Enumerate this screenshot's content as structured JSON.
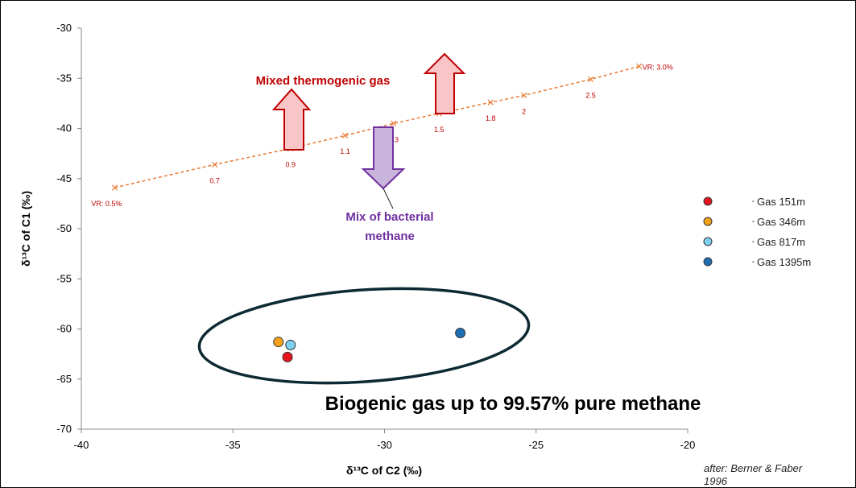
{
  "chart_data": {
    "type": "scatter",
    "xlabel": "δ¹³C of C2 (‰)",
    "ylabel": "δ¹³C of C1 (‰)",
    "xlim": [
      -40,
      -20
    ],
    "ylim": [
      -70,
      -30
    ],
    "xticks": [
      "-40",
      "-35",
      "-30",
      "-25",
      "-20"
    ],
    "yticks": [
      "-30",
      "-35",
      "-40",
      "-45",
      "-50",
      "-55",
      "-60",
      "-65",
      "-70"
    ],
    "vr_trend": {
      "color": "#e97a37",
      "points": [
        {
          "x": -38.9,
          "y": -45.9,
          "label": "VR: 0.5%"
        },
        {
          "x": -35.6,
          "y": -43.6,
          "label": "0.7"
        },
        {
          "x": -33.1,
          "y": -42.0,
          "label": "0.9"
        },
        {
          "x": -31.3,
          "y": -40.7,
          "label": "1.1"
        },
        {
          "x": -29.7,
          "y": -39.5,
          "label": "1.3"
        },
        {
          "x": -28.2,
          "y": -38.5,
          "label": "1.5"
        },
        {
          "x": -26.5,
          "y": -37.4,
          "label": "1.8"
        },
        {
          "x": -25.4,
          "y": -36.7,
          "label": "2"
        },
        {
          "x": -23.2,
          "y": -35.1,
          "label": "2.5"
        },
        {
          "x": -21.6,
          "y": -33.8,
          "label": "VR: 3.0%"
        }
      ]
    },
    "series": [
      {
        "name": "Gas 151m",
        "color": "#e8141e",
        "points": [
          {
            "x": -33.2,
            "y": -62.8
          }
        ]
      },
      {
        "name": "Gas 346m",
        "color": "#f7a21b",
        "points": [
          {
            "x": -33.5,
            "y": -61.3
          }
        ]
      },
      {
        "name": "Gas 817m",
        "color": "#7cd0f0",
        "points": [
          {
            "x": -33.1,
            "y": -61.6
          }
        ]
      },
      {
        "name": "Gas 1395m",
        "color": "#1f6fb5",
        "points": [
          {
            "x": -27.5,
            "y": -60.4
          }
        ]
      }
    ],
    "legend_position": "right"
  },
  "annotations": {
    "thermogenic": "Mixed thermogenic gas",
    "bacterial_line1": "Mix of bacterial",
    "bacterial_line2": "methane",
    "biogenic": "Biogenic gas up to 99.57% pure methane",
    "credit_line1": "after: Berner & Faber",
    "credit_line2": "1996"
  },
  "colors": {
    "thermogenic_fill": "#f9c5c7",
    "thermogenic_stroke": "#c00000",
    "bacterial_fill": "#c9b5dc",
    "bacterial_stroke": "#7030a0",
    "ellipse_stroke": "#0d2a33"
  }
}
